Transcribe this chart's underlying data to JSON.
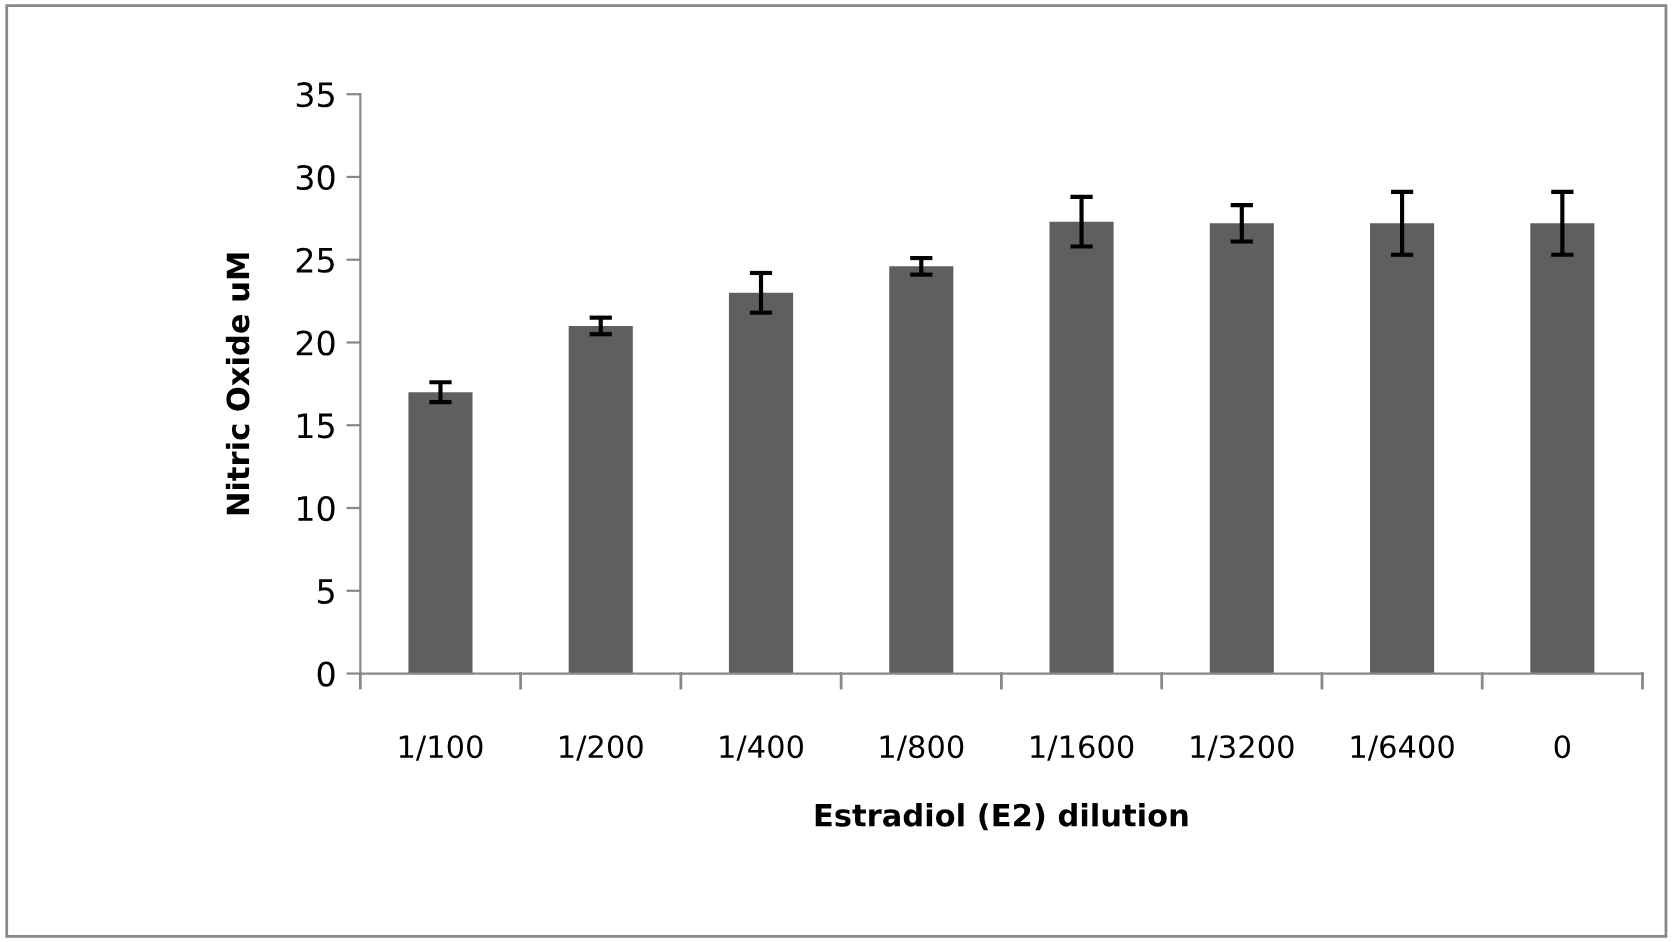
{
  "chart_data": {
    "type": "bar",
    "xlabel": "Estradiol (E2) dilution",
    "ylabel": "Nitric Oxide uM",
    "categories": [
      "1/100",
      "1/200",
      "1/400",
      "1/800",
      "1/1600",
      "1/3200",
      "1/6400",
      "0"
    ],
    "values": [
      17.0,
      21.0,
      23.0,
      24.6,
      27.3,
      27.2,
      27.2,
      27.2
    ],
    "errors": [
      0.6,
      0.5,
      1.2,
      0.5,
      1.5,
      1.1,
      1.9,
      1.9
    ],
    "color": "#5f5f5f",
    "ylim": [
      0,
      35
    ],
    "yticks": [
      0,
      5,
      10,
      15,
      20,
      25,
      30,
      35
    ],
    "grid": false,
    "legend": false
  }
}
